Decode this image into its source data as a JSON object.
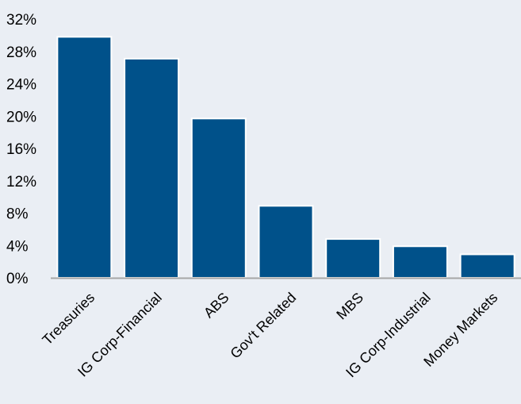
{
  "chart_data": {
    "type": "bar",
    "categories": [
      "Treasuries",
      "IG Corp-Financial",
      "ABS",
      "Gov't Related",
      "MBS",
      "IG Corp-Industrial",
      "Money Markets"
    ],
    "series": [
      {
        "values": [
          29.8,
          27.1,
          19.7,
          8.9,
          4.8,
          3.9,
          2.9
        ]
      }
    ],
    "ylim": [
      0,
      32
    ],
    "yticks": [
      0,
      4,
      8,
      12,
      16,
      20,
      24,
      28,
      32
    ],
    "ytick_labels": [
      "0%",
      "4%",
      "8%",
      "12%",
      "16%",
      "20%",
      "24%",
      "28%",
      "32%"
    ],
    "title": "",
    "xlabel": "",
    "ylabel": "",
    "grid": false,
    "legend": "none",
    "bar_color": "#00518a",
    "background_color": "#eaeef4",
    "axis_color": "#a6a6a6"
  }
}
